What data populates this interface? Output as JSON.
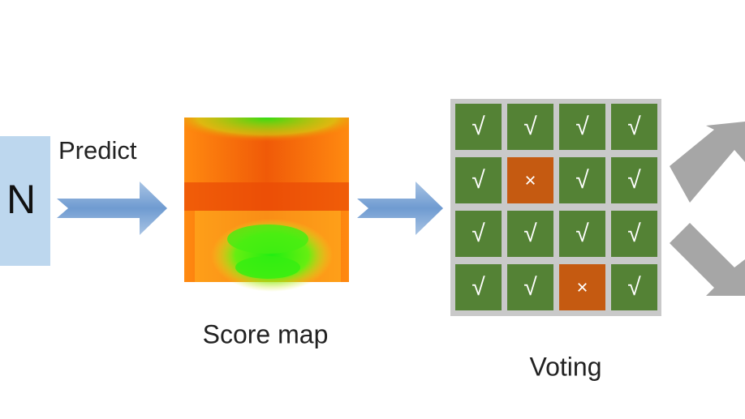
{
  "model_box": {
    "label": "N"
  },
  "predict_arrow": {
    "label": "Predict"
  },
  "score_map": {
    "caption": "Score map"
  },
  "voting": {
    "caption": "Voting",
    "grid": [
      [
        "√",
        "√",
        "√",
        "√"
      ],
      [
        "√",
        "×",
        "√",
        "√"
      ],
      [
        "√",
        "√",
        "√",
        "√"
      ],
      [
        "√",
        "√",
        "×",
        "√"
      ]
    ]
  }
}
